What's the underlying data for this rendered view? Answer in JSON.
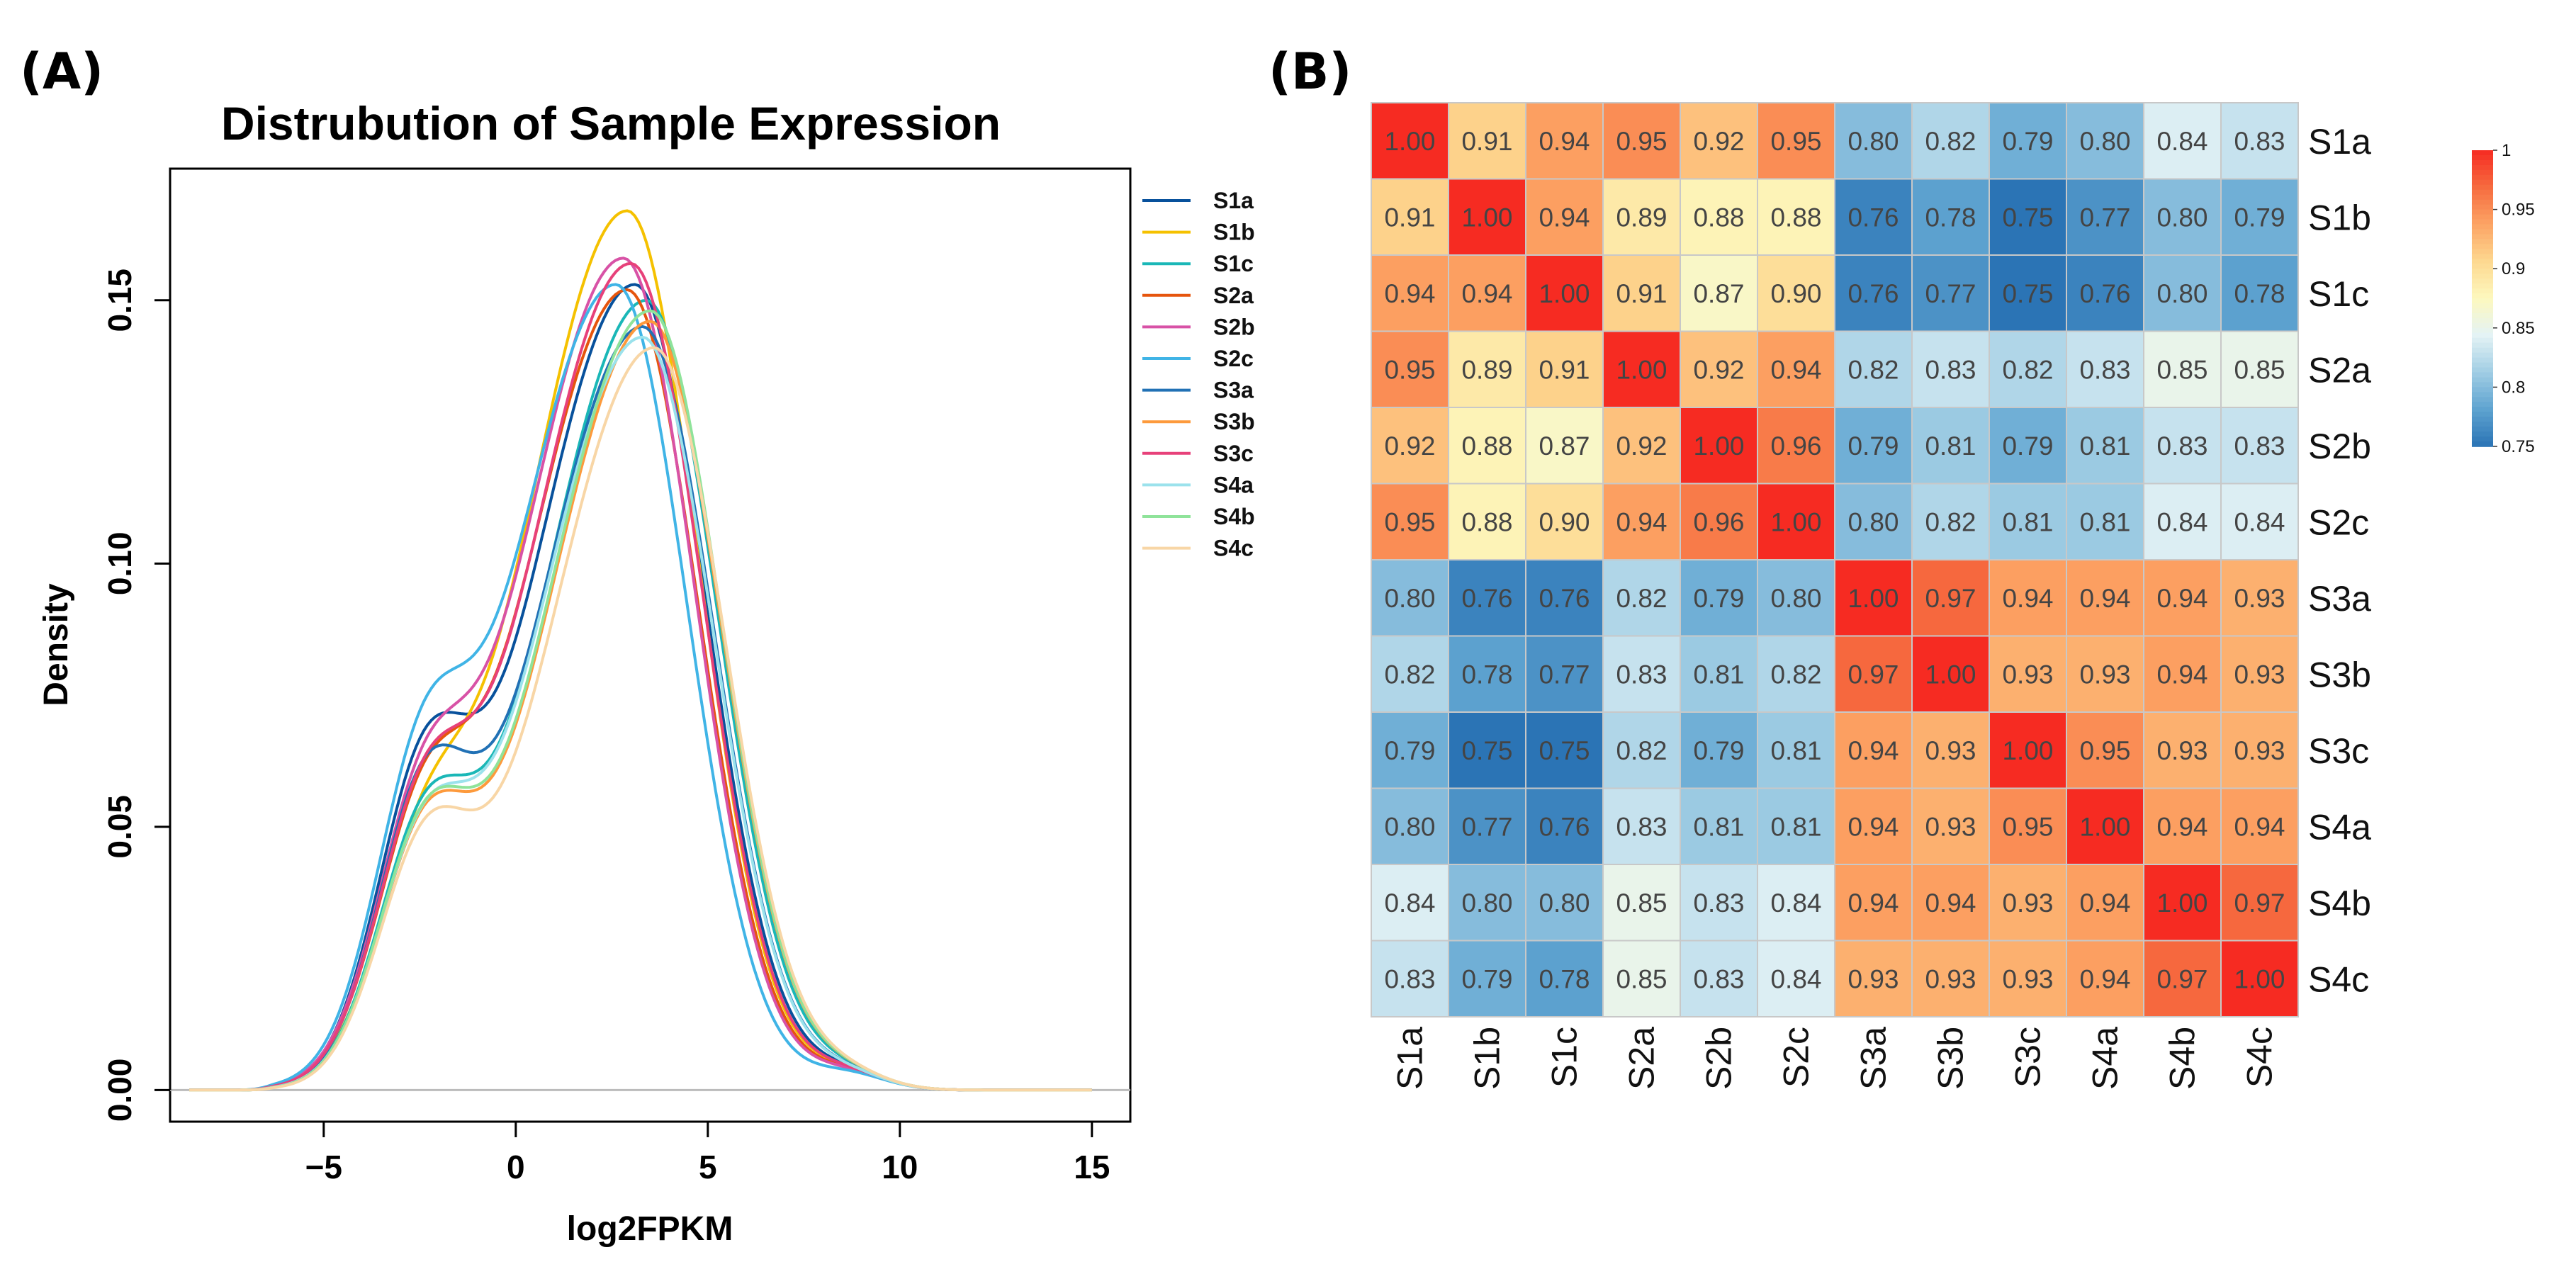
{
  "panels": {
    "a": {
      "label": "(A)"
    },
    "b": {
      "label": "(B)"
    }
  },
  "chart_data": [
    {
      "type": "line",
      "title": "Distrubution of Sample Expression",
      "xlabel": "log2FPKM",
      "ylabel": "Density",
      "xlim": [
        -9,
        16
      ],
      "ylim": [
        -0.006,
        0.175
      ],
      "xticks": [
        -5,
        0,
        5,
        10,
        15
      ],
      "xtick_labels": [
        "−5",
        "0",
        "5",
        "10",
        "15"
      ],
      "yticks": [
        0.0,
        0.05,
        0.1,
        0.15
      ],
      "ytick_labels": [
        "0.00",
        "0.05",
        "0.10",
        "0.15"
      ],
      "legend_position": "top-right",
      "series": [
        {
          "name": "S1a",
          "color": "#08519c",
          "peak_x": 3.1,
          "peak": 0.153,
          "curve": "early"
        },
        {
          "name": "S1b",
          "color": "#f5c100",
          "peak_x": 2.9,
          "peak": 0.167,
          "curve": "late"
        },
        {
          "name": "S1c",
          "color": "#1ab7b7",
          "peak_x": 3.4,
          "peak": 0.15,
          "curve": "normal"
        },
        {
          "name": "S2a",
          "color": "#e6550d",
          "peak_x": 2.9,
          "peak": 0.152,
          "curve": "normal"
        },
        {
          "name": "S2b",
          "color": "#d852a6",
          "peak_x": 2.8,
          "peak": 0.158,
          "curve": "normal"
        },
        {
          "name": "S2c",
          "color": "#40b4e6",
          "peak_x": 2.6,
          "peak": 0.153,
          "curve": "early"
        },
        {
          "name": "S3a",
          "color": "#2171b5",
          "peak_x": 3.3,
          "peak": 0.145,
          "curve": "early"
        },
        {
          "name": "S3b",
          "color": "#fd9a3c",
          "peak_x": 3.5,
          "peak": 0.146,
          "curve": "normal"
        },
        {
          "name": "S3c",
          "color": "#e7417a",
          "peak_x": 3.0,
          "peak": 0.157,
          "curve": "normal"
        },
        {
          "name": "S4a",
          "color": "#9be2ec",
          "peak_x": 3.3,
          "peak": 0.143,
          "curve": "normal"
        },
        {
          "name": "S4b",
          "color": "#8fe39a",
          "peak_x": 3.5,
          "peak": 0.148,
          "curve": "normal"
        },
        {
          "name": "S4c",
          "color": "#f8d6a6",
          "peak_x": 3.6,
          "peak": 0.141,
          "curve": "normal"
        }
      ]
    },
    {
      "type": "heatmap",
      "title": "",
      "row_labels": [
        "S1a",
        "S1b",
        "S1c",
        "S2a",
        "S2b",
        "S2c",
        "S3a",
        "S3b",
        "S3c",
        "S4a",
        "S4b",
        "S4c"
      ],
      "col_labels": [
        "S1a",
        "S1b",
        "S1c",
        "S2a",
        "S2b",
        "S2c",
        "S3a",
        "S3b",
        "S3c",
        "S4a",
        "S4b",
        "S4c"
      ],
      "values": [
        [
          1.0,
          0.91,
          0.94,
          0.95,
          0.92,
          0.95,
          0.8,
          0.82,
          0.79,
          0.8,
          0.84,
          0.83
        ],
        [
          0.91,
          1.0,
          0.94,
          0.89,
          0.88,
          0.88,
          0.76,
          0.78,
          0.75,
          0.77,
          0.8,
          0.79
        ],
        [
          0.94,
          0.94,
          1.0,
          0.91,
          0.87,
          0.9,
          0.76,
          0.77,
          0.75,
          0.76,
          0.8,
          0.78
        ],
        [
          0.95,
          0.89,
          0.91,
          1.0,
          0.92,
          0.94,
          0.82,
          0.83,
          0.82,
          0.83,
          0.85,
          0.85
        ],
        [
          0.92,
          0.88,
          0.87,
          0.92,
          1.0,
          0.96,
          0.79,
          0.81,
          0.79,
          0.81,
          0.83,
          0.83
        ],
        [
          0.95,
          0.88,
          0.9,
          0.94,
          0.96,
          1.0,
          0.8,
          0.82,
          0.81,
          0.81,
          0.84,
          0.84
        ],
        [
          0.8,
          0.76,
          0.76,
          0.82,
          0.79,
          0.8,
          1.0,
          0.97,
          0.94,
          0.94,
          0.94,
          0.93
        ],
        [
          0.82,
          0.78,
          0.77,
          0.83,
          0.81,
          0.82,
          0.97,
          1.0,
          0.93,
          0.93,
          0.94,
          0.93
        ],
        [
          0.79,
          0.75,
          0.75,
          0.82,
          0.79,
          0.81,
          0.94,
          0.93,
          1.0,
          0.95,
          0.93,
          0.93
        ],
        [
          0.8,
          0.77,
          0.76,
          0.83,
          0.81,
          0.81,
          0.94,
          0.93,
          0.95,
          1.0,
          0.94,
          0.94
        ],
        [
          0.84,
          0.8,
          0.8,
          0.85,
          0.83,
          0.84,
          0.94,
          0.94,
          0.93,
          0.94,
          1.0,
          0.97
        ],
        [
          0.83,
          0.79,
          0.78,
          0.85,
          0.83,
          0.84,
          0.93,
          0.93,
          0.93,
          0.94,
          0.97,
          1.0
        ]
      ],
      "colorbar": {
        "range": [
          0.75,
          1.0
        ],
        "ticks": [
          1,
          0.95,
          0.9,
          0.85,
          0.8,
          0.75
        ],
        "tick_labels": [
          "1",
          "0.95",
          "0.9",
          "0.85",
          "0.8",
          "0.75"
        ],
        "colors": [
          "#2b74b5",
          "#5ea3d0",
          "#a0cde4",
          "#e4f3f5",
          "#fdf8be",
          "#fdd890",
          "#fca464",
          "#f66b3f",
          "#f62b22"
        ]
      }
    }
  ]
}
